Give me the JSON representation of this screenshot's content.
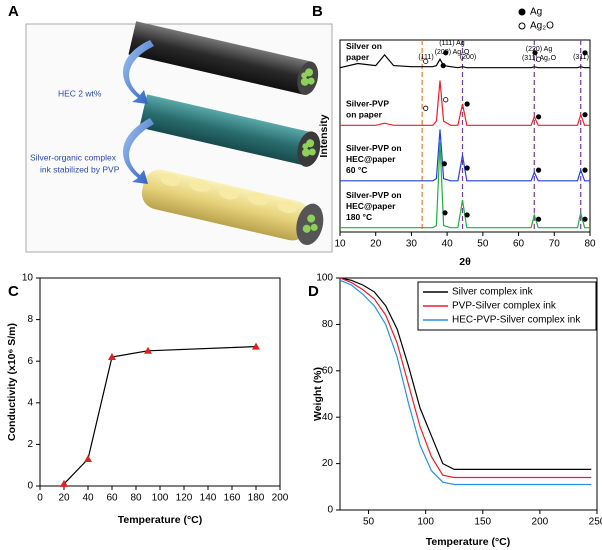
{
  "diagram": {
    "panel": "A",
    "labels": [
      "HEC 2 wt%",
      "Silver-organic complex",
      "ink stabilized by PVP"
    ]
  },
  "chart_data": [
    {
      "panel": "B",
      "type": "line",
      "xlabel": "2θ",
      "ylabel": "Intensity",
      "x": [
        10,
        15,
        20,
        22.5,
        25,
        30,
        33,
        36,
        37,
        38,
        39,
        41,
        43,
        44.3,
        45.5,
        50,
        60,
        63.5,
        64.4,
        65.5,
        70,
        76.5,
        77.4,
        78.5,
        80
      ],
      "xlim": [
        10,
        80
      ],
      "xticks": [
        10,
        20,
        30,
        40,
        50,
        60,
        70,
        80
      ],
      "ylim": [
        0,
        90
      ],
      "series": [
        {
          "label": [
            "Silver on",
            "paper"
          ],
          "color": "#000000",
          "values": [
            77,
            79,
            78,
            83,
            78,
            77.5,
            77.5,
            77.5,
            78,
            81,
            78,
            77.5,
            77,
            77.5,
            77,
            77,
            77,
            77,
            77.5,
            77,
            77,
            77,
            77.5,
            77,
            77
          ]
        },
        {
          "label": [
            "Silver-PVP",
            "on paper"
          ],
          "color": "#e8202a",
          "values": [
            50,
            50,
            50,
            51,
            50,
            50,
            50,
            50,
            52,
            71,
            52,
            50,
            50,
            60,
            50,
            50,
            50,
            50,
            54,
            50,
            50,
            50,
            55,
            50,
            50
          ]
        },
        {
          "label": [
            "Silver-PVP on",
            "HEC@paper",
            "60 °C"
          ],
          "color": "#2040e0",
          "values": [
            24,
            24,
            24,
            24,
            24,
            24,
            24,
            24,
            25,
            48,
            25,
            24,
            24,
            36,
            24,
            24,
            24,
            24,
            28,
            24,
            24,
            24,
            29,
            24,
            24
          ]
        },
        {
          "label": [
            "Silver-PVP on",
            "HEC@paper",
            "180 °C"
          ],
          "color": "#20b040",
          "values": [
            2,
            2,
            2,
            2,
            2,
            2,
            2,
            2,
            3,
            42,
            3,
            2,
            2,
            15,
            2,
            2,
            2,
            2,
            8,
            2,
            2,
            2,
            9,
            2,
            2
          ]
        }
      ],
      "legend": [
        "Ag",
        "Ag₂O"
      ],
      "annotations": [
        "(111)",
        "(111) Ag",
        "(200) Ag₂O",
        "(200)",
        "(220) Ag",
        "(311) Ag₂O",
        "(311)"
      ],
      "ref_lines": [
        33,
        44.3,
        64.4,
        77.4
      ],
      "ref_colors": [
        "#f07838",
        "#7a3a9a",
        "#7a3a9a",
        "#7a3a9a"
      ]
    },
    {
      "panel": "C",
      "type": "line",
      "xlabel": "Temperature (°C)",
      "ylabel": "Conductivity (x10⁶ S/m)",
      "x": [
        20,
        40,
        60,
        90,
        180
      ],
      "xlim": [
        0,
        200
      ],
      "xticks": [
        0,
        20,
        40,
        60,
        80,
        100,
        120,
        140,
        160,
        180,
        200
      ],
      "ylim": [
        0,
        10
      ],
      "yticks": [
        0,
        2,
        4,
        6,
        8,
        10
      ],
      "series": [
        {
          "color": "#000000",
          "marker_color": "#e02020",
          "values": [
            0.1,
            1.3,
            6.2,
            6.5,
            6.7
          ]
        }
      ]
    },
    {
      "panel": "D",
      "type": "line",
      "xlabel": "Temperature (°C)",
      "ylabel": "Weight (%)",
      "x": [
        25,
        35,
        45,
        55,
        65,
        75,
        85,
        95,
        105,
        115,
        125,
        145,
        200,
        245
      ],
      "xlim": [
        25,
        250
      ],
      "xticks": [
        50,
        100,
        150,
        200,
        250
      ],
      "ylim": [
        0,
        100
      ],
      "yticks": [
        0,
        20,
        40,
        60,
        80,
        100
      ],
      "legend_position": "upper right",
      "series": [
        {
          "name": "Silver complex ink",
          "color": "#000000",
          "values": [
            100,
            99,
            97,
            94,
            88,
            78,
            62,
            44,
            32,
            20,
            17.5,
            17.5,
            17.5,
            17.5
          ]
        },
        {
          "name": "PVP-Silver complex ink",
          "color": "#e8202a",
          "values": [
            100,
            98,
            95,
            91,
            84,
            72,
            54,
            36,
            23,
            15,
            14,
            14,
            14,
            14
          ]
        },
        {
          "name": "HEC-PVP-Silver complex ink",
          "color": "#2f8fe0",
          "values": [
            99,
            97,
            93,
            88,
            80,
            66,
            46,
            28,
            17,
            12,
            11,
            11,
            11,
            11
          ]
        }
      ]
    }
  ]
}
